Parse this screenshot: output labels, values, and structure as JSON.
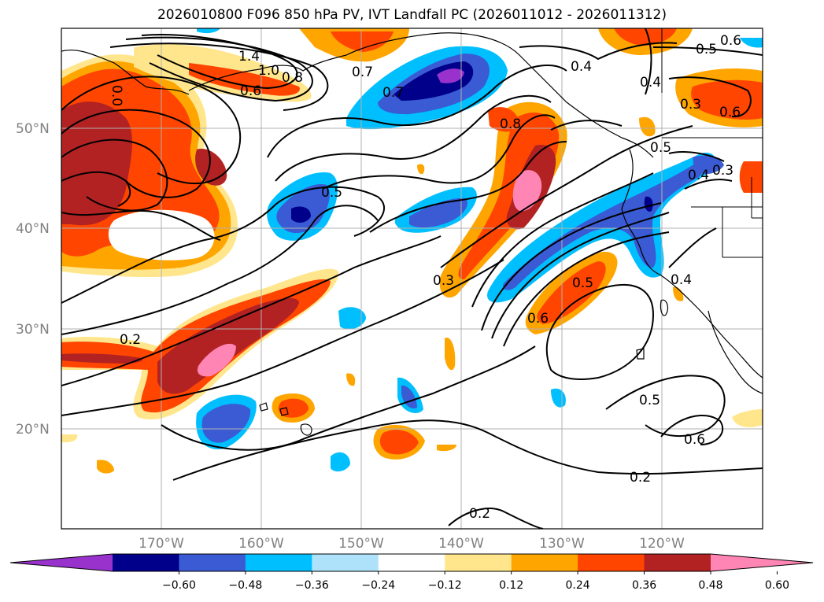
{
  "title": "2026010800 F096 850 hPa PV, IVT Landfall PC (2026011012 - 2026011312)",
  "latitude_labels": [
    "50°N",
    "40°N",
    "30°N",
    "20°N"
  ],
  "longitude_labels": [
    "170°W",
    "160°W",
    "150°W",
    "140°W",
    "130°W",
    "120°W"
  ],
  "colorbar": {
    "ticks": [
      "−0.60",
      "−0.48",
      "−0.36",
      "−0.24",
      "−0.12",
      "0.12",
      "0.24",
      "0.36",
      "0.48",
      "0.60"
    ],
    "colors": [
      "#9932cc",
      "#00008b",
      "#3a5bd4",
      "#00bfff",
      "#aee2fb",
      "#ffffff",
      "#ffe68c",
      "#ffa500",
      "#ff4500",
      "#b22222",
      "#ff85b4"
    ]
  },
  "contour_labels": [
    "1.4",
    "1.0",
    "0.8",
    "0.6",
    "0.7",
    "0.6",
    "0.5",
    "0.6",
    "0.4",
    "0.4",
    "0.3",
    "0.7",
    "0.8",
    "0.5",
    "0.4",
    "0.3",
    "0.5",
    "0.3",
    "0.5",
    "0.6",
    "0.4",
    "0.2",
    "0.5",
    "0.6",
    "0.2",
    "0.2",
    "0.0"
  ]
}
